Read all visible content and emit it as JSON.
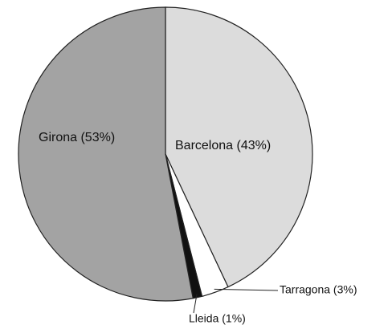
{
  "chart_data": {
    "type": "pie",
    "values": [
      43,
      3,
      1,
      53
    ],
    "value_labels": [
      "Barcelona (43%)",
      "Tarragona (3%)",
      "Lleida (1%)",
      "Girona (53%)"
    ],
    "colors": [
      "#dcdcdc",
      "#ffffff",
      "#111111",
      "#a3a3a3"
    ]
  }
}
